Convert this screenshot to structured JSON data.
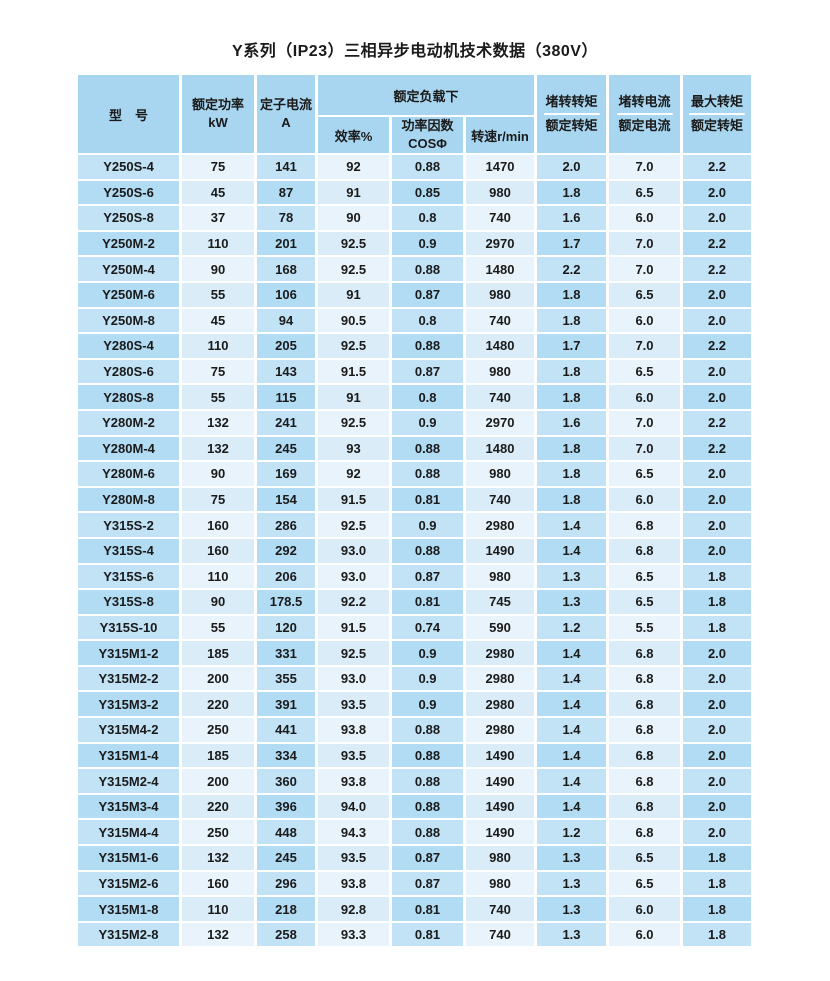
{
  "title": "Y系列（IP23）三相异步电动机技术数据（380V）",
  "colors": {
    "page_bg": "#ffffff",
    "header_bg": "#a8d6f0",
    "cell_blue_odd": "#c2e2f6",
    "cell_blue_even": "#b2dcf3",
    "cell_light_odd": "#e8f3fb",
    "cell_light_even": "#d9ecf8",
    "text": "#1a1a1a",
    "grid": "#ffffff"
  },
  "table": {
    "header": {
      "model": "型　号",
      "power_line1": "额定功率",
      "power_line2": "kW",
      "current_line1": "定子电流",
      "current_line2": "A",
      "rated_load": "额定负载下",
      "efficiency": "效率%",
      "pf_line1": "功率因数",
      "pf_line2": "COSΦ",
      "speed": "转速r/min",
      "lrt_num": "堵转转矩",
      "lrt_den": "额定转矩",
      "lrc_num": "堵转电流",
      "lrc_den": "额定电流",
      "mt_num": "最大转矩",
      "mt_den": "额定转矩"
    },
    "rows": [
      [
        "Y250S-4",
        "75",
        "141",
        "92",
        "0.88",
        "1470",
        "2.0",
        "7.0",
        "2.2"
      ],
      [
        "Y250S-6",
        "45",
        "87",
        "91",
        "0.85",
        "980",
        "1.8",
        "6.5",
        "2.0"
      ],
      [
        "Y250S-8",
        "37",
        "78",
        "90",
        "0.8",
        "740",
        "1.6",
        "6.0",
        "2.0"
      ],
      [
        "Y250M-2",
        "110",
        "201",
        "92.5",
        "0.9",
        "2970",
        "1.7",
        "7.0",
        "2.2"
      ],
      [
        "Y250M-4",
        "90",
        "168",
        "92.5",
        "0.88",
        "1480",
        "2.2",
        "7.0",
        "2.2"
      ],
      [
        "Y250M-6",
        "55",
        "106",
        "91",
        "0.87",
        "980",
        "1.8",
        "6.5",
        "2.0"
      ],
      [
        "Y250M-8",
        "45",
        "94",
        "90.5",
        "0.8",
        "740",
        "1.8",
        "6.0",
        "2.0"
      ],
      [
        "Y280S-4",
        "110",
        "205",
        "92.5",
        "0.88",
        "1480",
        "1.7",
        "7.0",
        "2.2"
      ],
      [
        "Y280S-6",
        "75",
        "143",
        "91.5",
        "0.87",
        "980",
        "1.8",
        "6.5",
        "2.0"
      ],
      [
        "Y280S-8",
        "55",
        "115",
        "91",
        "0.8",
        "740",
        "1.8",
        "6.0",
        "2.0"
      ],
      [
        "Y280M-2",
        "132",
        "241",
        "92.5",
        "0.9",
        "2970",
        "1.6",
        "7.0",
        "2.2"
      ],
      [
        "Y280M-4",
        "132",
        "245",
        "93",
        "0.88",
        "1480",
        "1.8",
        "7.0",
        "2.2"
      ],
      [
        "Y280M-6",
        "90",
        "169",
        "92",
        "0.88",
        "980",
        "1.8",
        "6.5",
        "2.0"
      ],
      [
        "Y280M-8",
        "75",
        "154",
        "91.5",
        "0.81",
        "740",
        "1.8",
        "6.0",
        "2.0"
      ],
      [
        "Y315S-2",
        "160",
        "286",
        "92.5",
        "0.9",
        "2980",
        "1.4",
        "6.8",
        "2.0"
      ],
      [
        "Y315S-4",
        "160",
        "292",
        "93.0",
        "0.88",
        "1490",
        "1.4",
        "6.8",
        "2.0"
      ],
      [
        "Y315S-6",
        "110",
        "206",
        "93.0",
        "0.87",
        "980",
        "1.3",
        "6.5",
        "1.8"
      ],
      [
        "Y315S-8",
        "90",
        "178.5",
        "92.2",
        "0.81",
        "745",
        "1.3",
        "6.5",
        "1.8"
      ],
      [
        "Y315S-10",
        "55",
        "120",
        "91.5",
        "0.74",
        "590",
        "1.2",
        "5.5",
        "1.8"
      ],
      [
        "Y315M1-2",
        "185",
        "331",
        "92.5",
        "0.9",
        "2980",
        "1.4",
        "6.8",
        "2.0"
      ],
      [
        "Y315M2-2",
        "200",
        "355",
        "93.0",
        "0.9",
        "2980",
        "1.4",
        "6.8",
        "2.0"
      ],
      [
        "Y315M3-2",
        "220",
        "391",
        "93.5",
        "0.9",
        "2980",
        "1.4",
        "6.8",
        "2.0"
      ],
      [
        "Y315M4-2",
        "250",
        "441",
        "93.8",
        "0.88",
        "2980",
        "1.4",
        "6.8",
        "2.0"
      ],
      [
        "Y315M1-4",
        "185",
        "334",
        "93.5",
        "0.88",
        "1490",
        "1.4",
        "6.8",
        "2.0"
      ],
      [
        "Y315M2-4",
        "200",
        "360",
        "93.8",
        "0.88",
        "1490",
        "1.4",
        "6.8",
        "2.0"
      ],
      [
        "Y315M3-4",
        "220",
        "396",
        "94.0",
        "0.88",
        "1490",
        "1.4",
        "6.8",
        "2.0"
      ],
      [
        "Y315M4-4",
        "250",
        "448",
        "94.3",
        "0.88",
        "1490",
        "1.2",
        "6.8",
        "2.0"
      ],
      [
        "Y315M1-6",
        "132",
        "245",
        "93.5",
        "0.87",
        "980",
        "1.3",
        "6.5",
        "1.8"
      ],
      [
        "Y315M2-6",
        "160",
        "296",
        "93.8",
        "0.87",
        "980",
        "1.3",
        "6.5",
        "1.8"
      ],
      [
        "Y315M1-8",
        "110",
        "218",
        "92.8",
        "0.81",
        "740",
        "1.3",
        "6.0",
        "1.8"
      ],
      [
        "Y315M2-8",
        "132",
        "258",
        "93.3",
        "0.81",
        "740",
        "1.3",
        "6.0",
        "1.8"
      ]
    ]
  }
}
